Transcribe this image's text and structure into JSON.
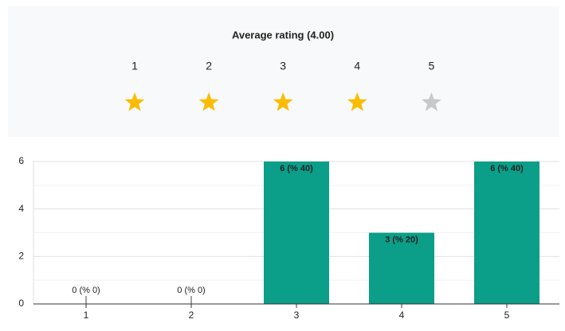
{
  "rating_panel": {
    "title": "Average rating (4.00)",
    "stars": [
      {
        "label": "1",
        "color": "#fbbc04"
      },
      {
        "label": "2",
        "color": "#fbbc04"
      },
      {
        "label": "3",
        "color": "#fbbc04"
      },
      {
        "label": "4",
        "color": "#fbbc04"
      },
      {
        "label": "5",
        "color": "#c8c8c8"
      }
    ]
  },
  "chart_data": {
    "type": "bar",
    "categories": [
      "1",
      "2",
      "3",
      "4",
      "5"
    ],
    "values": [
      0,
      0,
      6,
      3,
      6
    ],
    "value_labels": [
      "0 (% 0)",
      "0 (% 0)",
      "6 (% 40)",
      "3 (% 20)",
      "6 (% 40)"
    ],
    "color": "#0b9e88",
    "ylim": [
      0,
      6
    ],
    "yticks": [
      0,
      2,
      4,
      6
    ],
    "minor_yticks": [
      1,
      3,
      5
    ],
    "grid": true
  }
}
